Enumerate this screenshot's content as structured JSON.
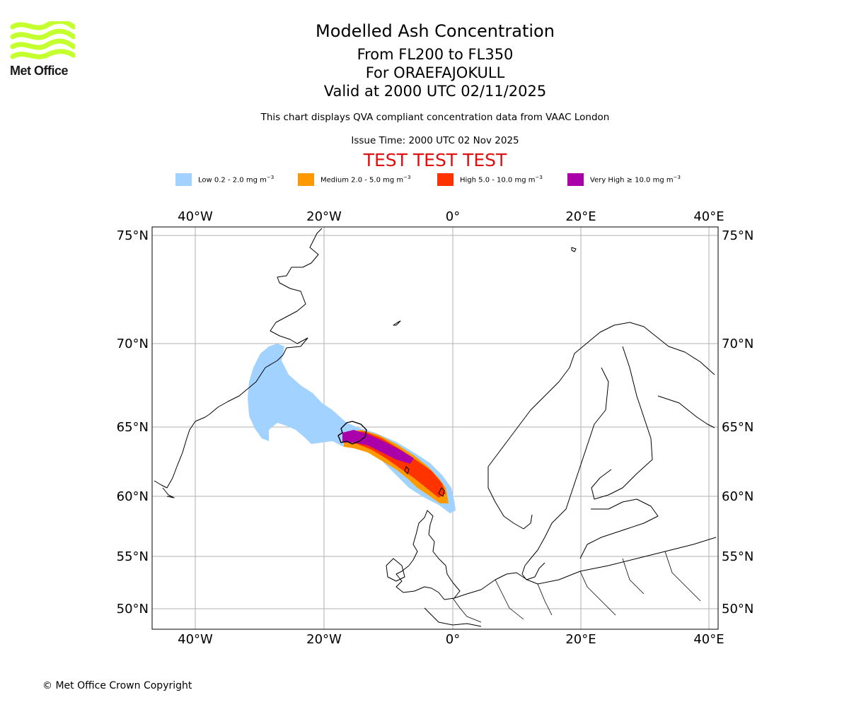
{
  "logo": {
    "text": "Met Office",
    "color": "#c4ff2e"
  },
  "titles": {
    "main": "Modelled Ash Concentration",
    "levels": "From FL200 to FL350",
    "volcano": "For ORAEFAJOKULL",
    "valid": "Valid at 2000 UTC 02/11/2025"
  },
  "subtitle": "This chart displays QVA compliant concentration data from VAAC London",
  "issue_time": "Issue Time: 2000 UTC 02 Nov 2025",
  "test_banner": "TEST TEST TEST",
  "legend": [
    {
      "label": "Low 0.2 - 2.0 mg m",
      "color": "#a2d2ff"
    },
    {
      "label": "Medium 2.0 - 5.0 mg m",
      "color": "#ff9900"
    },
    {
      "label": "High 5.0 - 10.0 mg m",
      "color": "#ff3300"
    },
    {
      "label": "Very High ≥ 10.0 mg m",
      "color": "#aa00aa"
    }
  ],
  "legend_unit_exp": "−3",
  "map": {
    "lon_ticks": [
      "40°W",
      "20°W",
      "0°",
      "20°E",
      "40°E"
    ],
    "lat_ticks": [
      "75°N",
      "70°N",
      "65°N",
      "60°N",
      "55°N",
      "50°N"
    ]
  },
  "copyright": "© Met Office Crown Copyright"
}
